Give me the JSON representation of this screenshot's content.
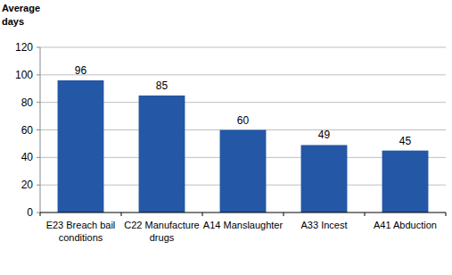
{
  "chart_data": {
    "type": "bar",
    "y_label": "Average days",
    "categories": [
      "E23 Breach bail conditions",
      "C22 Manufacture drugs",
      "A14 Manslaughter",
      "A33 Incest",
      "A41 Abduction"
    ],
    "values": [
      96,
      85,
      60,
      49,
      45
    ],
    "color": "#2457a5",
    "ylim": [
      0,
      120
    ],
    "yticks": [
      0,
      20,
      40,
      60,
      80,
      100,
      120
    ],
    "grid": true,
    "data_labels": true
  }
}
